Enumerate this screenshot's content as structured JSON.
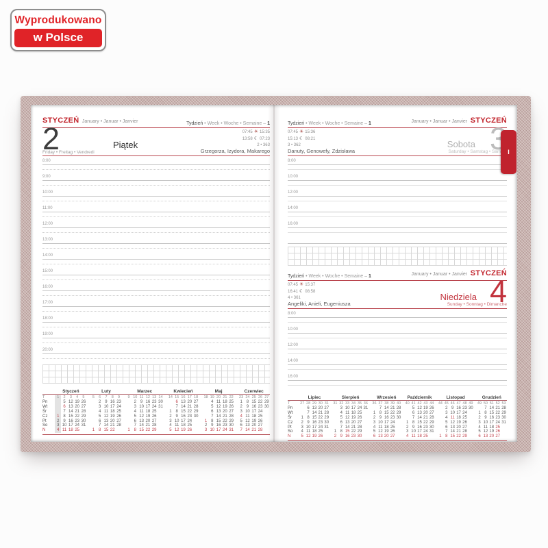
{
  "badge": {
    "line1": "Wyprodukowano",
    "line2": "w Polsce"
  },
  "icons": {
    "sun": "☀",
    "moon": "☾"
  },
  "colors": {
    "accent_red": "#c2262e",
    "holiday_red": "#c0414b",
    "cover": "#c9b2ae"
  },
  "page_left": {
    "month_title": "STYCZEŃ",
    "month_subtitle": "January • Januar • Janvier",
    "week_prefix": "Tydzień",
    "week_mid": " • Week • Woche • Semaine – ",
    "week_number": "1",
    "day": {
      "number": "2",
      "name": "Piątek",
      "translations": "Friday • Freitag • Vendredi",
      "sunrise": "07:45",
      "sunset": "15:35",
      "moonrise": "13:58",
      "moonset": "07:23",
      "day_count": "2 • 363",
      "name_days": "Grzegorza, Izydora, Makarego"
    },
    "hours": [
      "8:00",
      "9:00",
      "10:00",
      "11:00",
      "12:00",
      "13:00",
      "14:00",
      "15:00",
      "16:00",
      "17:00",
      "18:00",
      "19:00",
      "20:00"
    ],
    "mini_calendar": {
      "day_labels": [
        "T",
        "Pn",
        "Wt",
        "Śr",
        "Cz",
        "Pt",
        "So",
        "N"
      ],
      "months": [
        {
          "name": "Styczeń",
          "weeks": [
            "1",
            "2",
            "3",
            "4",
            "5"
          ],
          "highlight_col": 0,
          "rows": [
            [
              "",
              "5",
              "12",
              "19",
              "26"
            ],
            [
              "",
              "*6",
              "13",
              "20",
              "27"
            ],
            [
              "",
              "7",
              "14",
              "21",
              "28"
            ],
            [
              "*1",
              "8",
              "15",
              "22",
              "29"
            ],
            [
              "2",
              "9",
              "16",
              "23",
              "30"
            ],
            [
              "3",
              "10",
              "17",
              "24",
              "31"
            ],
            [
              "4",
              "11",
              "18",
              "25",
              ""
            ]
          ]
        },
        {
          "name": "Luty",
          "weeks": [
            "5",
            "6",
            "7",
            "8",
            "9"
          ],
          "rows": [
            [
              "",
              "2",
              "9",
              "16",
              "23"
            ],
            [
              "",
              "3",
              "10",
              "17",
              "24"
            ],
            [
              "",
              "4",
              "11",
              "18",
              "25"
            ],
            [
              "",
              "5",
              "12",
              "19",
              "26"
            ],
            [
              "",
              "6",
              "13",
              "20",
              "27"
            ],
            [
              "",
              "7",
              "14",
              "21",
              "28"
            ],
            [
              "1",
              "8",
              "15",
              "22",
              ""
            ]
          ]
        },
        {
          "name": "Marzec",
          "weeks": [
            "9",
            "10",
            "11",
            "12",
            "13",
            "14"
          ],
          "rows": [
            [
              "",
              "2",
              "9",
              "16",
              "23",
              "30"
            ],
            [
              "",
              "3",
              "10",
              "17",
              "24",
              "31"
            ],
            [
              "",
              "4",
              "11",
              "18",
              "25",
              ""
            ],
            [
              "",
              "5",
              "12",
              "19",
              "26",
              ""
            ],
            [
              "",
              "6",
              "13",
              "20",
              "27",
              ""
            ],
            [
              "",
              "7",
              "14",
              "21",
              "28",
              ""
            ],
            [
              "1",
              "8",
              "15",
              "22",
              "29",
              ""
            ]
          ]
        },
        {
          "name": "Kwiecień",
          "weeks": [
            "14",
            "15",
            "16",
            "17",
            "18"
          ],
          "rows": [
            [
              "",
              "*6",
              "13",
              "20",
              "27"
            ],
            [
              "",
              "7",
              "14",
              "21",
              "28"
            ],
            [
              "1",
              "8",
              "15",
              "22",
              "29"
            ],
            [
              "2",
              "9",
              "16",
              "23",
              "30"
            ],
            [
              "3",
              "10",
              "17",
              "24",
              ""
            ],
            [
              "4",
              "11",
              "18",
              "25",
              ""
            ],
            [
              "5",
              "12",
              "19",
              "26",
              ""
            ]
          ]
        },
        {
          "name": "Maj",
          "weeks": [
            "18",
            "19",
            "20",
            "21",
            "22"
          ],
          "rows": [
            [
              "",
              "4",
              "11",
              "18",
              "25"
            ],
            [
              "",
              "5",
              "12",
              "19",
              "26"
            ],
            [
              "",
              "6",
              "13",
              "20",
              "27"
            ],
            [
              "",
              "7",
              "14",
              "21",
              "28"
            ],
            [
              "*1",
              "8",
              "15",
              "22",
              "29"
            ],
            [
              "2",
              "9",
              "16",
              "23",
              "30"
            ],
            [
              "3",
              "10",
              "17",
              "24",
              "31"
            ]
          ]
        },
        {
          "name": "Czerwiec",
          "weeks": [
            "23",
            "24",
            "25",
            "26",
            "27"
          ],
          "rows": [
            [
              "1",
              "8",
              "15",
              "22",
              "29"
            ],
            [
              "2",
              "9",
              "16",
              "23",
              "30"
            ],
            [
              "3",
              "10",
              "17",
              "24",
              ""
            ],
            [
              "*4",
              "11",
              "18",
              "25",
              ""
            ],
            [
              "5",
              "12",
              "19",
              "26",
              ""
            ],
            [
              "6",
              "13",
              "20",
              "27",
              ""
            ],
            [
              "7",
              "14",
              "21",
              "28",
              ""
            ]
          ]
        }
      ]
    }
  },
  "page_right": {
    "tab_label": "I",
    "hours": [
      "8:00",
      "10:00",
      "12:00",
      "14:00",
      "16:00"
    ],
    "sections": [
      {
        "month_title": "STYCZEŃ",
        "month_subtitle": "January • Januar • Janvier",
        "week_prefix": "Tydzień",
        "week_mid": " • Week • Woche • Semaine – ",
        "week_number": "1",
        "day": {
          "number": "3",
          "name": "Sobota",
          "translations": "Saturday • Samstag • Samedi",
          "sunrise": "07:45",
          "sunset": "15:36",
          "moonrise": "15:13",
          "moonset": "08:21",
          "day_count": "3 • 362",
          "name_days": "Danuty, Genowefy, Zdzisława"
        }
      },
      {
        "month_title": "STYCZEŃ",
        "month_subtitle": "January • Januar • Janvier",
        "week_prefix": "Tydzień",
        "week_mid": " • Week • Woche • Semaine – ",
        "week_number": "1",
        "day": {
          "number": "4",
          "name": "Niedziela",
          "translations": "Sunday • Sonntag • Dimanche",
          "sunrise": "07:45",
          "sunset": "15:37",
          "moonrise": "16:41",
          "moonset": "08:58",
          "day_count": "4 • 361",
          "name_days": "Angeliki, Anieli, Eugeniusza"
        }
      }
    ],
    "mini_calendar": {
      "day_labels": [
        "T",
        "Pn",
        "Wt",
        "Śr",
        "Cz",
        "Pt",
        "So",
        "N"
      ],
      "months": [
        {
          "name": "Lipiec",
          "weeks": [
            "27",
            "28",
            "29",
            "30",
            "31"
          ],
          "rows": [
            [
              "",
              "6",
              "13",
              "20",
              "27"
            ],
            [
              "",
              "7",
              "14",
              "21",
              "28"
            ],
            [
              "1",
              "8",
              "15",
              "22",
              "29"
            ],
            [
              "2",
              "9",
              "16",
              "23",
              "30"
            ],
            [
              "3",
              "10",
              "17",
              "24",
              "31"
            ],
            [
              "4",
              "11",
              "18",
              "25",
              ""
            ],
            [
              "5",
              "12",
              "19",
              "26",
              ""
            ]
          ]
        },
        {
          "name": "Sierpień",
          "weeks": [
            "31",
            "32",
            "33",
            "34",
            "35",
            "36"
          ],
          "rows": [
            [
              "",
              "3",
              "10",
              "17",
              "24",
              "31"
            ],
            [
              "",
              "4",
              "11",
              "18",
              "25",
              ""
            ],
            [
              "",
              "5",
              "12",
              "19",
              "26",
              ""
            ],
            [
              "",
              "6",
              "13",
              "20",
              "27",
              ""
            ],
            [
              "",
              "7",
              "14",
              "21",
              "28",
              ""
            ],
            [
              "1",
              "8",
              "*15",
              "22",
              "29",
              ""
            ],
            [
              "2",
              "9",
              "16",
              "23",
              "30",
              ""
            ]
          ]
        },
        {
          "name": "Wrzesień",
          "weeks": [
            "36",
            "37",
            "38",
            "39",
            "40"
          ],
          "rows": [
            [
              "",
              "7",
              "14",
              "21",
              "28"
            ],
            [
              "1",
              "8",
              "15",
              "22",
              "29"
            ],
            [
              "2",
              "9",
              "16",
              "23",
              "30"
            ],
            [
              "3",
              "10",
              "17",
              "24",
              ""
            ],
            [
              "4",
              "11",
              "18",
              "25",
              ""
            ],
            [
              "5",
              "12",
              "19",
              "26",
              ""
            ],
            [
              "6",
              "13",
              "20",
              "27",
              ""
            ]
          ]
        },
        {
          "name": "Październik",
          "weeks": [
            "40",
            "41",
            "42",
            "43",
            "44"
          ],
          "rows": [
            [
              "",
              "5",
              "12",
              "19",
              "26"
            ],
            [
              "",
              "6",
              "13",
              "20",
              "27"
            ],
            [
              "",
              "7",
              "14",
              "21",
              "28"
            ],
            [
              "1",
              "8",
              "15",
              "22",
              "29"
            ],
            [
              "2",
              "9",
              "16",
              "23",
              "30"
            ],
            [
              "3",
              "10",
              "17",
              "24",
              "31"
            ],
            [
              "4",
              "11",
              "18",
              "25",
              ""
            ]
          ]
        },
        {
          "name": "Listopad",
          "weeks": [
            "44",
            "45",
            "46",
            "47",
            "48",
            "49"
          ],
          "rows": [
            [
              "",
              "2",
              "9",
              "16",
              "23",
              "30"
            ],
            [
              "",
              "3",
              "10",
              "17",
              "24",
              ""
            ],
            [
              "",
              "4",
              "*11",
              "18",
              "25",
              ""
            ],
            [
              "",
              "5",
              "12",
              "19",
              "26",
              ""
            ],
            [
              "",
              "6",
              "13",
              "20",
              "27",
              ""
            ],
            [
              "",
              "7",
              "14",
              "21",
              "28",
              ""
            ],
            [
              "1",
              "8",
              "15",
              "22",
              "29",
              ""
            ]
          ]
        },
        {
          "name": "Grudzień",
          "weeks": [
            "49",
            "50",
            "51",
            "52",
            "53"
          ],
          "rows": [
            [
              "",
              "7",
              "14",
              "21",
              "28"
            ],
            [
              "1",
              "8",
              "15",
              "22",
              "29"
            ],
            [
              "2",
              "9",
              "16",
              "23",
              "30"
            ],
            [
              "3",
              "10",
              "17",
              "24",
              "31"
            ],
            [
              "4",
              "11",
              "18",
              "*25",
              ""
            ],
            [
              "5",
              "12",
              "19",
              "*26",
              ""
            ],
            [
              "6",
              "13",
              "20",
              "27",
              ""
            ]
          ]
        }
      ]
    }
  }
}
